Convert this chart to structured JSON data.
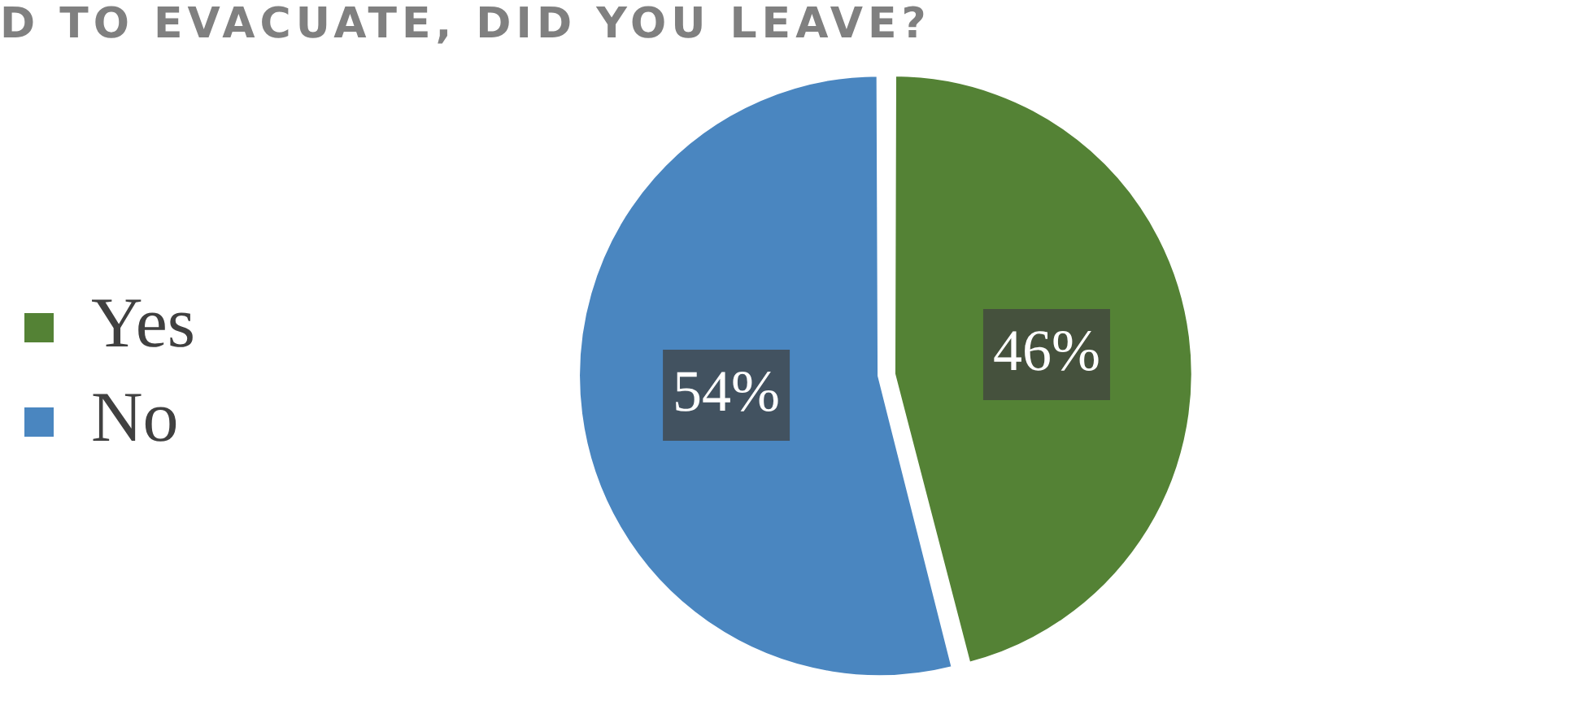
{
  "chart_data": {
    "type": "pie",
    "title": "D TO EVACUATE, DID YOU LEAVE?",
    "categories": [
      "Yes",
      "No"
    ],
    "values": [
      46,
      54
    ],
    "colors": [
      "#548235",
      "#4a86c0"
    ],
    "legend": "left",
    "value_labels": [
      "46%",
      "54%"
    ]
  }
}
